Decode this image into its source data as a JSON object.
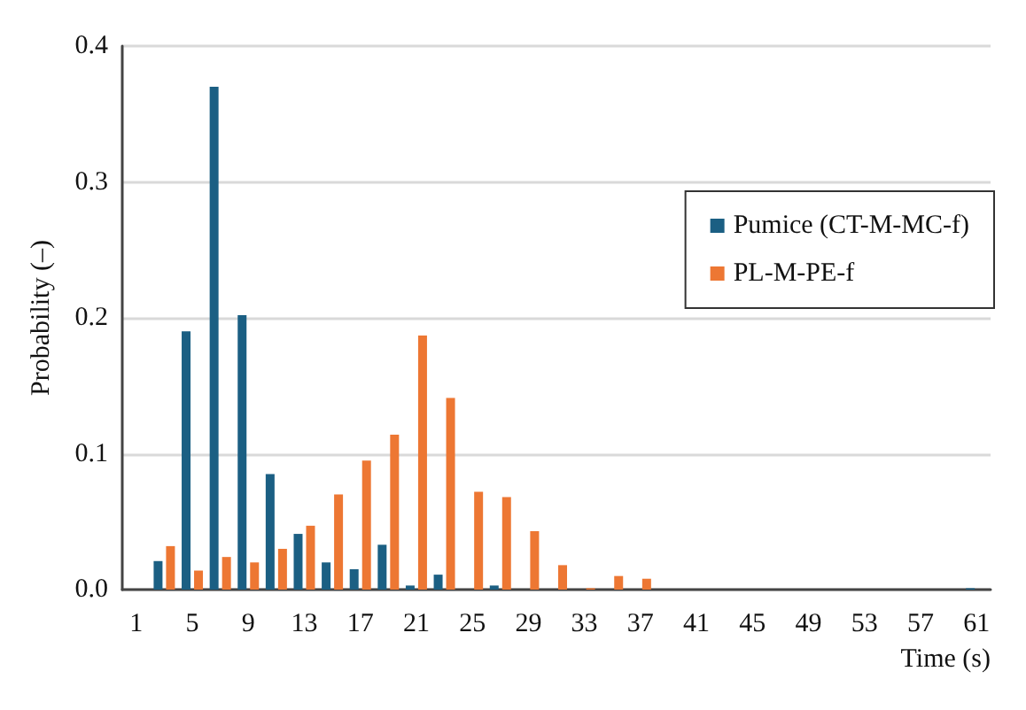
{
  "chart_data": {
    "type": "bar",
    "xlabel": "Time (s)",
    "ylabel": "Probability (–)",
    "categories": [
      "1",
      null,
      "5",
      null,
      "9",
      null,
      "13",
      null,
      "17",
      null,
      "21",
      null,
      "25",
      null,
      "29",
      null,
      "33",
      null,
      "37",
      null,
      "41",
      null,
      "45",
      null,
      "49",
      null,
      "53",
      null,
      "57",
      null,
      "61"
    ],
    "series": [
      {
        "name": "Pumice (CT-M-MC-f)",
        "color": "#1b5f83",
        "values": [
          0,
          0.021,
          0.19,
          0.37,
          0.202,
          0.085,
          0.041,
          0.02,
          0.015,
          0.033,
          0.003,
          0.011,
          0,
          0.003,
          0,
          0,
          0,
          0,
          0,
          0,
          0,
          0,
          0,
          0,
          0,
          0,
          0,
          0,
          0,
          0,
          0.001
        ]
      },
      {
        "name": "PL-M-PE-f",
        "color": "#ed7733",
        "values": [
          0,
          0.032,
          0.014,
          0.024,
          0.02,
          0.03,
          0.047,
          0.07,
          0.095,
          0.114,
          0.187,
          0.141,
          0.072,
          0.068,
          0.043,
          0.018,
          0.001,
          0.01,
          0.008,
          0,
          0,
          0,
          0,
          0,
          0,
          0,
          0,
          0,
          0,
          0,
          0
        ]
      }
    ],
    "ylim": [
      0,
      0.4
    ],
    "yticks": [
      {
        "value": 0,
        "label": "0.0"
      },
      0.1,
      0.2,
      0.3,
      0.4
    ],
    "grid": "y",
    "legend": "right"
  }
}
